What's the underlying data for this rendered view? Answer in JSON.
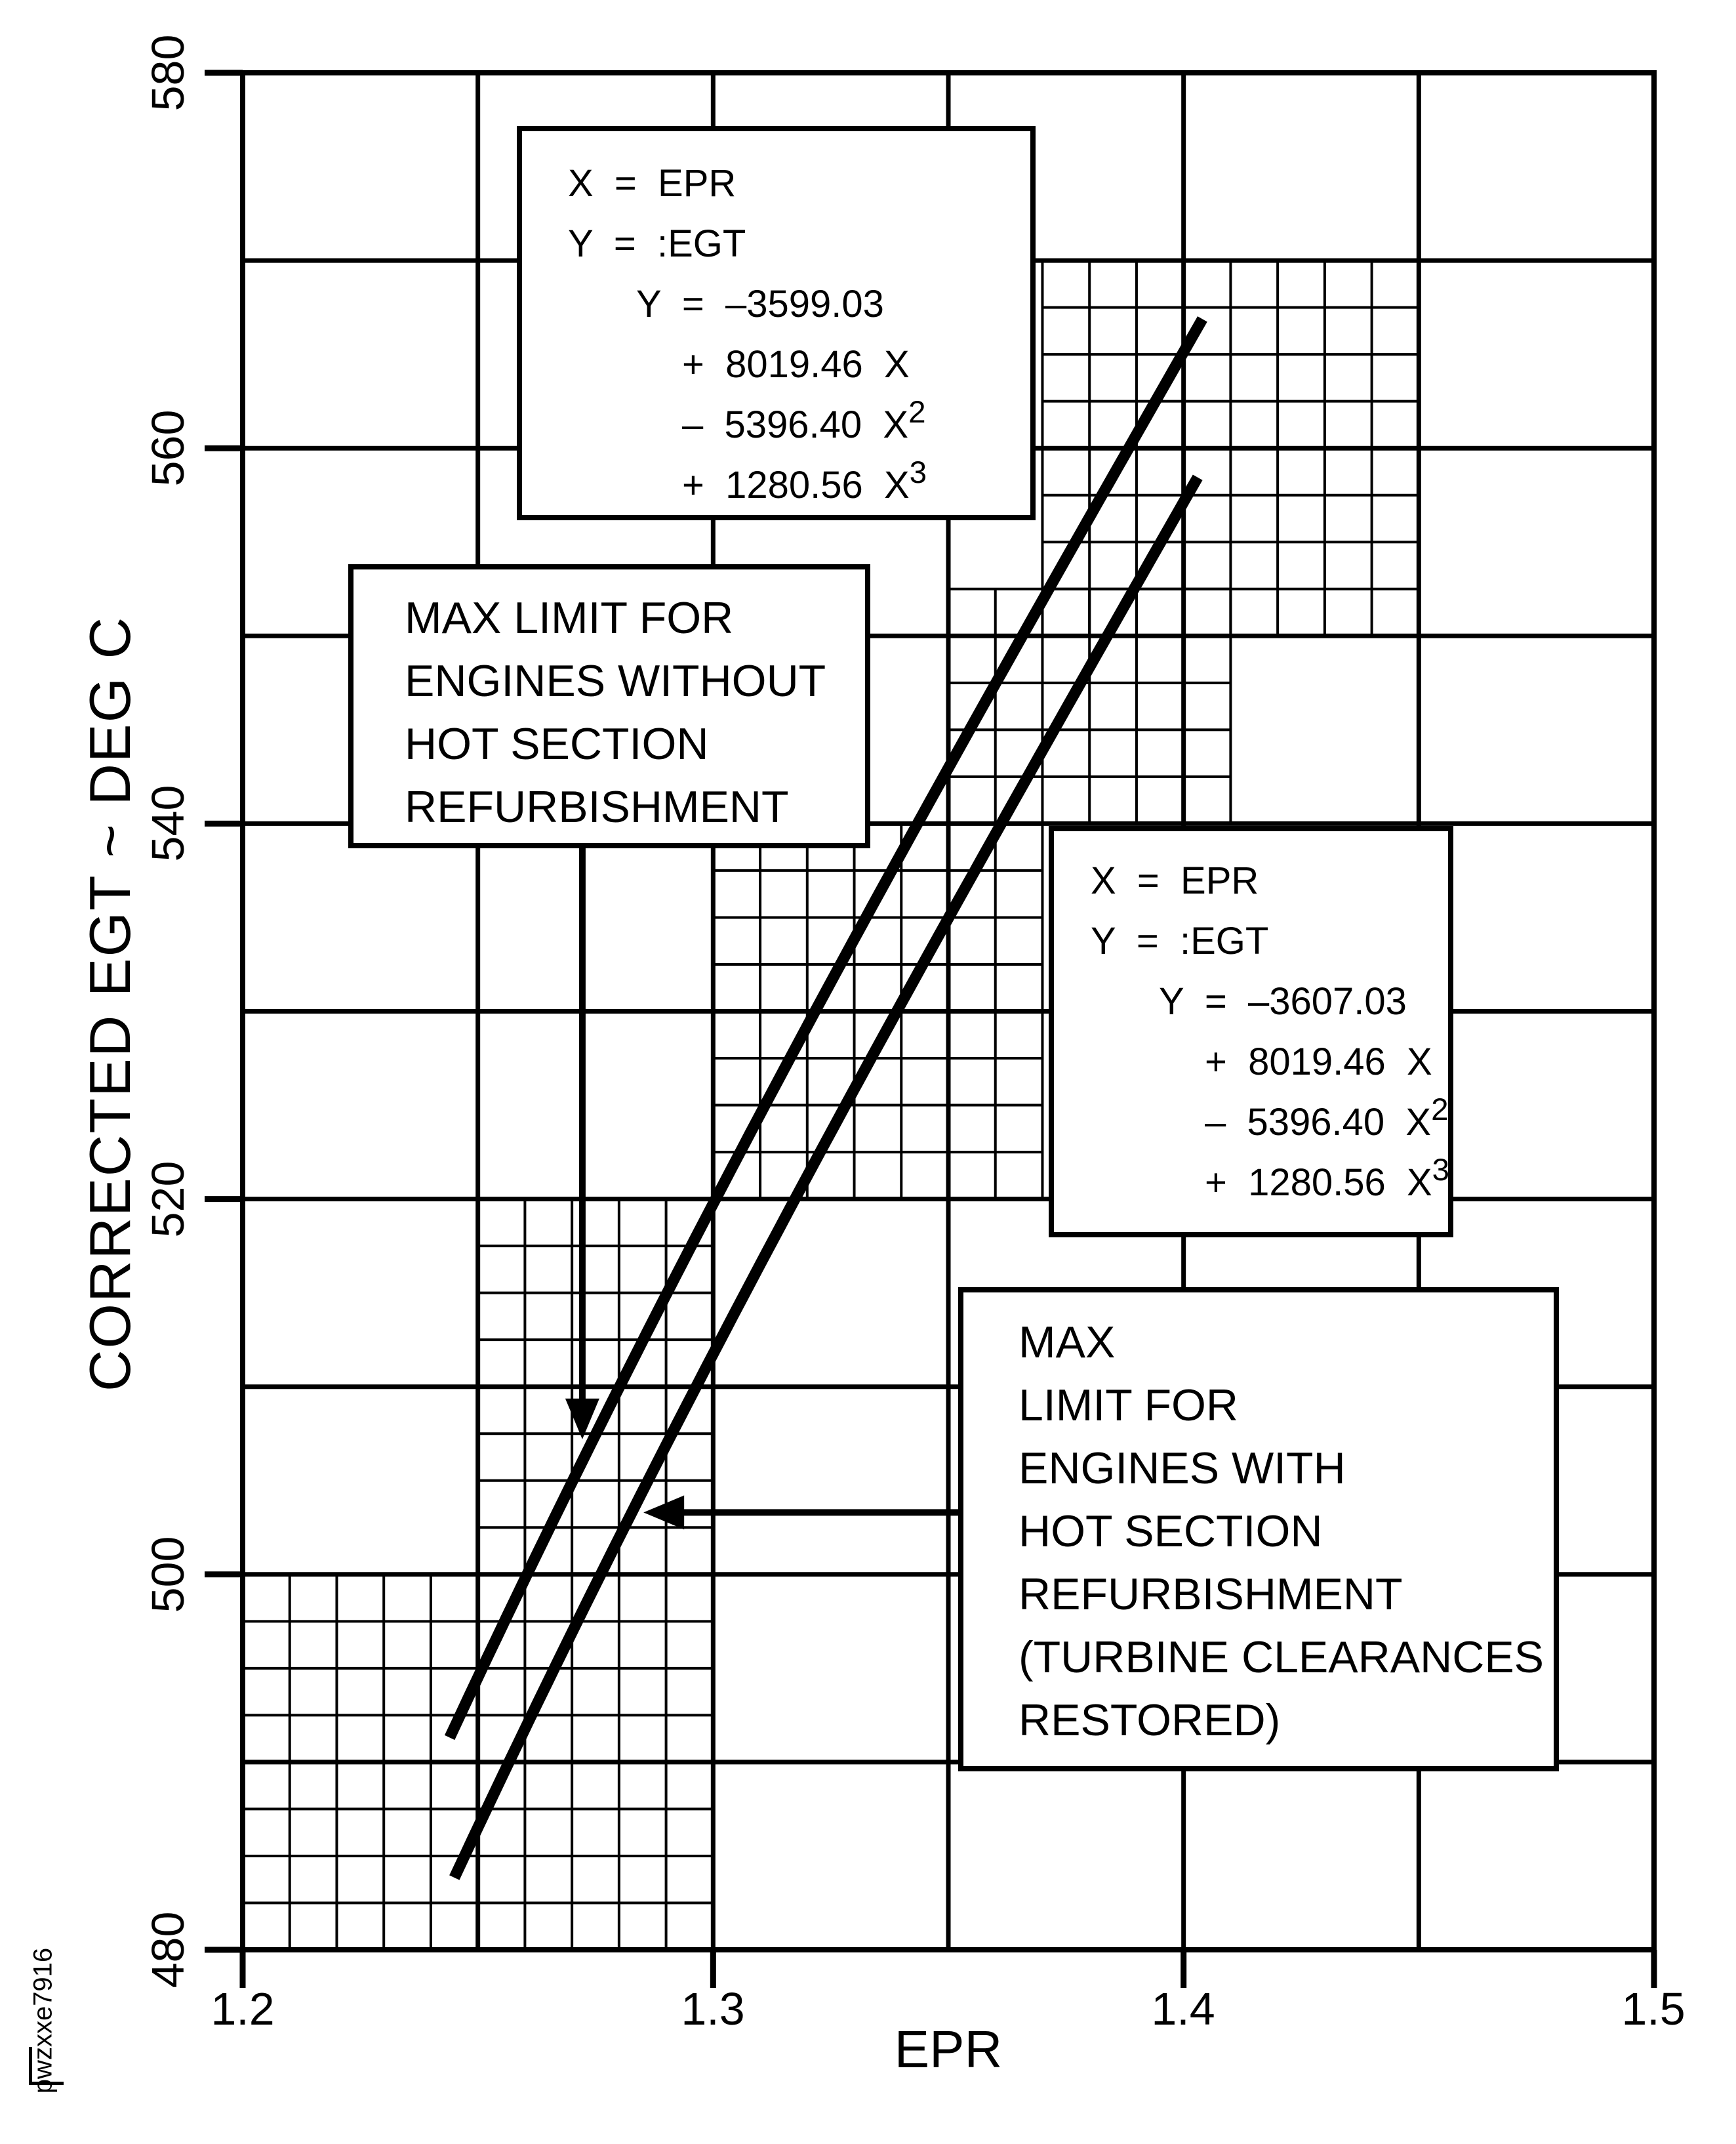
{
  "watermark": {
    "text": "pwzxxe7916"
  },
  "chart_data": {
    "type": "line",
    "title": "",
    "xlabel": "EPR",
    "ylabel": "CORRECTED EGT ~ DEG C",
    "xlim": [
      1.2,
      1.5
    ],
    "ylim": [
      480,
      580
    ],
    "x_ticks": [
      1.2,
      1.3,
      1.4,
      1.5
    ],
    "x_tick_labels": [
      "1.2",
      "1.3",
      "1.4",
      "1.5"
    ],
    "y_ticks": [
      480,
      500,
      520,
      540,
      560,
      580
    ],
    "y_tick_labels": [
      "480",
      "500",
      "520",
      "540",
      "560",
      "580"
    ],
    "grid": {
      "major_x_step": 0.05,
      "major_y_step": 10,
      "fine_x_step": 0.01,
      "fine_y_step": 2.5
    },
    "legend_position": "none",
    "series": [
      {
        "name": "Max limit for engines without hot section refurbishment",
        "model": "cubic",
        "coefficients": [
          -3599.03,
          8019.46,
          -5396.4,
          1280.56
        ],
        "x_domain": [
          1.244,
          1.404
        ],
        "points": [
          [
            1.24,
            489.14
          ],
          [
            1.26,
            499.77
          ],
          [
            1.28,
            509.95
          ],
          [
            1.3,
            519.74
          ],
          [
            1.32,
            529.21
          ],
          [
            1.34,
            538.47
          ],
          [
            1.36,
            547.45
          ],
          [
            1.38,
            556.32
          ],
          [
            1.4,
            565.13
          ]
        ],
        "equation_lines": [
          {
            "t": "X  =  EPR",
            "sup": ""
          },
          {
            "t": "Y  =  :EGT",
            "sup": ""
          },
          {
            "t": "Y  =  –3599.03",
            "sup": ""
          },
          {
            "t": "+  8019.46  X",
            "sup": ""
          },
          {
            "t": "–  5396.40  X",
            "sup": "2"
          },
          {
            "t": "+  1280.56  X",
            "sup": "3"
          }
        ]
      },
      {
        "name": "Max limit for engines with hot section refurbishment (turbine clearances restored)",
        "model": "cubic",
        "coefficients": [
          -3607.03,
          8019.46,
          -5396.4,
          1280.56
        ],
        "x_domain": [
          1.245,
          1.403
        ],
        "points": [
          [
            1.25,
            486.51
          ],
          [
            1.26,
            491.77
          ],
          [
            1.28,
            501.95
          ],
          [
            1.3,
            511.74
          ],
          [
            1.32,
            521.21
          ],
          [
            1.34,
            530.47
          ],
          [
            1.36,
            539.45
          ],
          [
            1.38,
            548.32
          ],
          [
            1.4,
            557.13
          ]
        ],
        "equation_lines": [
          {
            "t": "X  =  EPR",
            "sup": ""
          },
          {
            "t": "Y  =  :EGT",
            "sup": ""
          },
          {
            "t": "Y  =  –3607.03",
            "sup": ""
          },
          {
            "t": "+  8019.46  X",
            "sup": ""
          },
          {
            "t": "–  5396.40  X",
            "sup": "2"
          },
          {
            "t": "+  1280.56  X",
            "sup": "3"
          }
        ]
      }
    ],
    "annotation_labels": {
      "without": {
        "lines": [
          "MAX LIMIT FOR",
          "ENGINES WITHOUT",
          "HOT SECTION",
          "REFURBISHMENT"
        ]
      },
      "with": {
        "lines": [
          "MAX",
          "LIMIT FOR",
          "ENGINES WITH",
          "HOT SECTION",
          "REFURBISHMENT",
          "(TURBINE CLEARANCES",
          "RESTORED)"
        ]
      }
    },
    "hatched_regions": [
      {
        "x": [
          1.2,
          1.3
        ],
        "y": [
          480,
          500
        ]
      },
      {
        "x": [
          1.25,
          1.3
        ],
        "y": [
          500,
          520
        ]
      },
      {
        "x": [
          1.3,
          1.37
        ],
        "y": [
          520,
          540
        ]
      },
      {
        "x": [
          1.35,
          1.41
        ],
        "y": [
          540,
          552.5
        ]
      },
      {
        "x": [
          1.37,
          1.45
        ],
        "y": [
          550,
          570
        ]
      }
    ],
    "arrows": [
      {
        "dir": "down",
        "x": 1.2722,
        "from_y": 538.7,
        "to_y": 507.2
      },
      {
        "dir": "left",
        "y": 503.3,
        "from_x": 1.3521,
        "to_x": 1.2852
      }
    ]
  }
}
